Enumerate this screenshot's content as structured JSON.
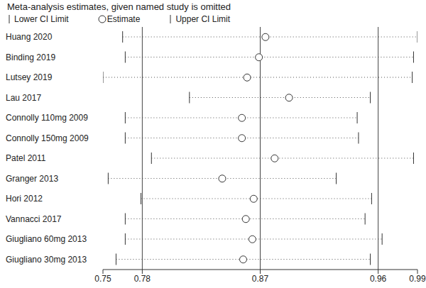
{
  "chart_data": {
    "type": "forest",
    "title": "Meta-analysis estimates, given named study is omitted",
    "categories": [
      "Huang 2020",
      "Binding 2019",
      "Lutsey 2019",
      "Lau 2017",
      "Connolly 110mg 2009",
      "Connolly 150mg 2009",
      "Patel 2011",
      "Granger 2013",
      "Hori 2012",
      "Vannacci 2017",
      "Giugliano 60mg 2013",
      "Giugliano 30mg 2013"
    ],
    "series": [
      {
        "name": "Lower CI Limit",
        "values": [
          0.765,
          0.767,
          0.75,
          0.816,
          0.767,
          0.767,
          0.787,
          0.754,
          0.779,
          0.767,
          0.767,
          0.76
        ]
      },
      {
        "name": "Estimate",
        "values": [
          0.874,
          0.869,
          0.86,
          0.892,
          0.856,
          0.856,
          0.881,
          0.841,
          0.865,
          0.859,
          0.864,
          0.857
        ],
        "marker": "circle"
      },
      {
        "name": "Upper CI Limit",
        "values": [
          0.99,
          0.987,
          0.986,
          0.954,
          0.944,
          0.945,
          0.987,
          0.928,
          0.955,
          0.95,
          0.963,
          0.954
        ]
      }
    ],
    "reference_lines": [
      0.78,
      0.87,
      0.96
    ],
    "xlim": [
      0.75,
      0.99
    ],
    "xticks": [
      0.75,
      0.78,
      0.87,
      0.96,
      0.99
    ],
    "line_style": "dotted"
  }
}
